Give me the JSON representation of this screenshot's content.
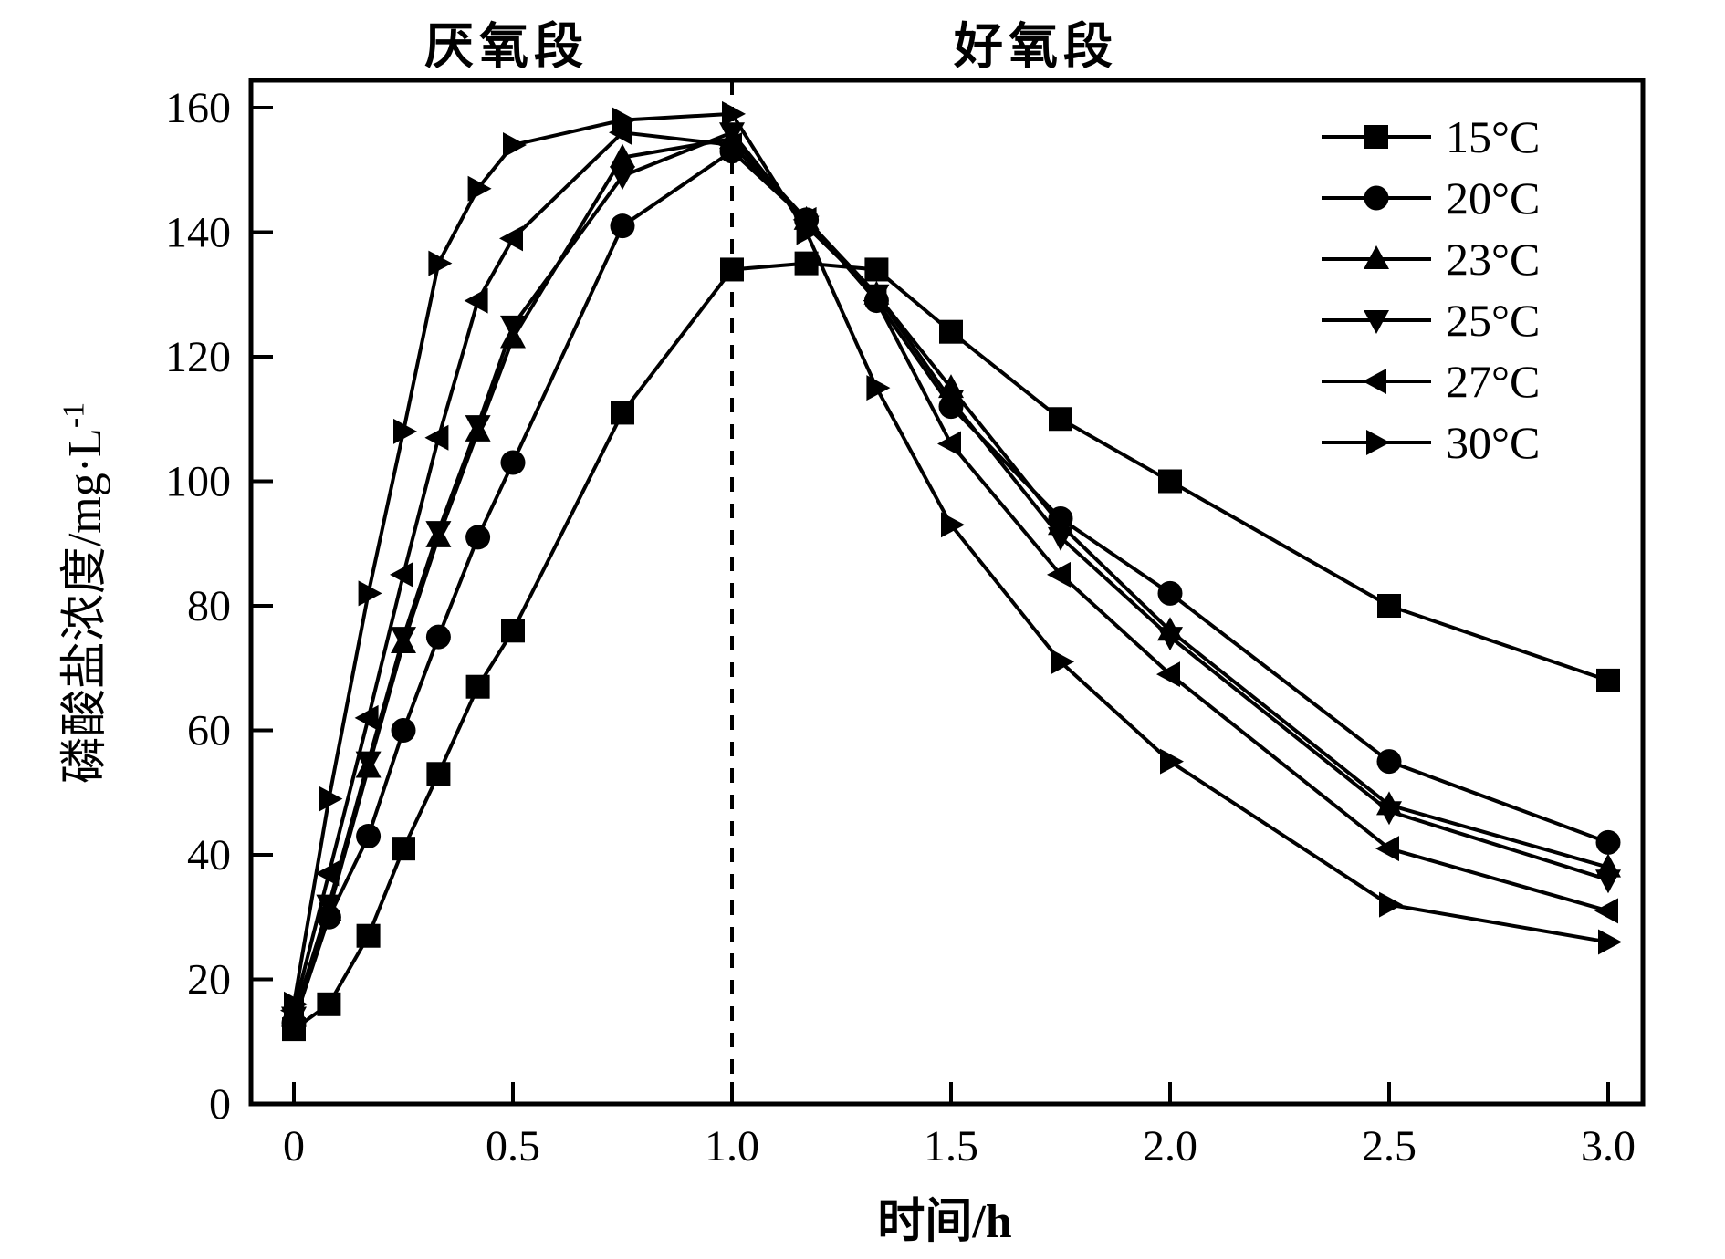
{
  "figure": {
    "background": "#ffffff",
    "ink_color": "#000000",
    "section_labels": {
      "anaerobic": "厌氧段",
      "aerobic": "好氧段"
    }
  },
  "chart_data": {
    "type": "line",
    "title": "",
    "xlabel": "时间/h",
    "ylabel": "磷酸盐浓度/mg·L⁻¹",
    "ylabel_base": "磷酸盐浓度/mg·L",
    "ylabel_superscript": "-1",
    "xlim": [
      -0.14,
      3.08
    ],
    "ylim": [
      0,
      164.5
    ],
    "x_ticks": {
      "values": [
        0,
        0.5,
        1.0,
        1.5,
        2.0,
        2.5,
        3.0
      ],
      "labels": [
        "0",
        "0.5",
        "1.0",
        "1.5",
        "2.0",
        "2.5",
        "3.0"
      ]
    },
    "y_ticks": {
      "values": [
        0,
        20,
        40,
        60,
        80,
        100,
        120,
        140,
        160
      ],
      "labels": [
        "0",
        "20",
        "40",
        "60",
        "80",
        "100",
        "120",
        "140",
        "160"
      ]
    },
    "grid": false,
    "legend_position": "top-right",
    "annotations": [
      {
        "type": "vline",
        "x": 1.0,
        "style": "dashed"
      }
    ],
    "x": [
      0,
      0.08,
      0.17,
      0.25,
      0.33,
      0.42,
      0.5,
      0.75,
      1.0,
      1.17,
      1.33,
      1.5,
      1.75,
      2.0,
      2.5,
      3.0
    ],
    "series": [
      {
        "name": "15°C",
        "marker": "square",
        "values": [
          12,
          16,
          27,
          41,
          53,
          67,
          76,
          111,
          134,
          135,
          134,
          124,
          110,
          100,
          80,
          68
        ]
      },
      {
        "name": "20°C",
        "marker": "circle",
        "values": [
          13,
          30,
          43,
          60,
          75,
          91,
          103,
          141,
          153,
          142,
          129,
          112,
          94,
          82,
          55,
          42
        ]
      },
      {
        "name": "23°C",
        "marker": "triangle-up",
        "values": [
          14,
          31,
          54,
          74,
          91,
          108,
          123,
          152,
          155,
          142,
          130,
          115,
          93,
          76,
          48,
          38
        ]
      },
      {
        "name": "25°C",
        "marker": "triangle-down",
        "values": [
          14,
          32,
          55,
          75,
          92,
          109,
          125,
          149,
          156,
          141,
          130,
          113,
          91,
          75,
          47,
          36
        ]
      },
      {
        "name": "27°C",
        "marker": "triangle-left",
        "values": [
          15,
          37,
          62,
          85,
          107,
          129,
          139,
          156,
          154,
          142,
          129,
          106,
          85,
          69,
          41,
          31
        ]
      },
      {
        "name": "30°C",
        "marker": "triangle-right",
        "values": [
          16,
          49,
          82,
          108,
          135,
          147,
          154,
          158,
          159,
          140,
          115,
          93,
          71,
          55,
          32,
          26
        ]
      }
    ]
  }
}
